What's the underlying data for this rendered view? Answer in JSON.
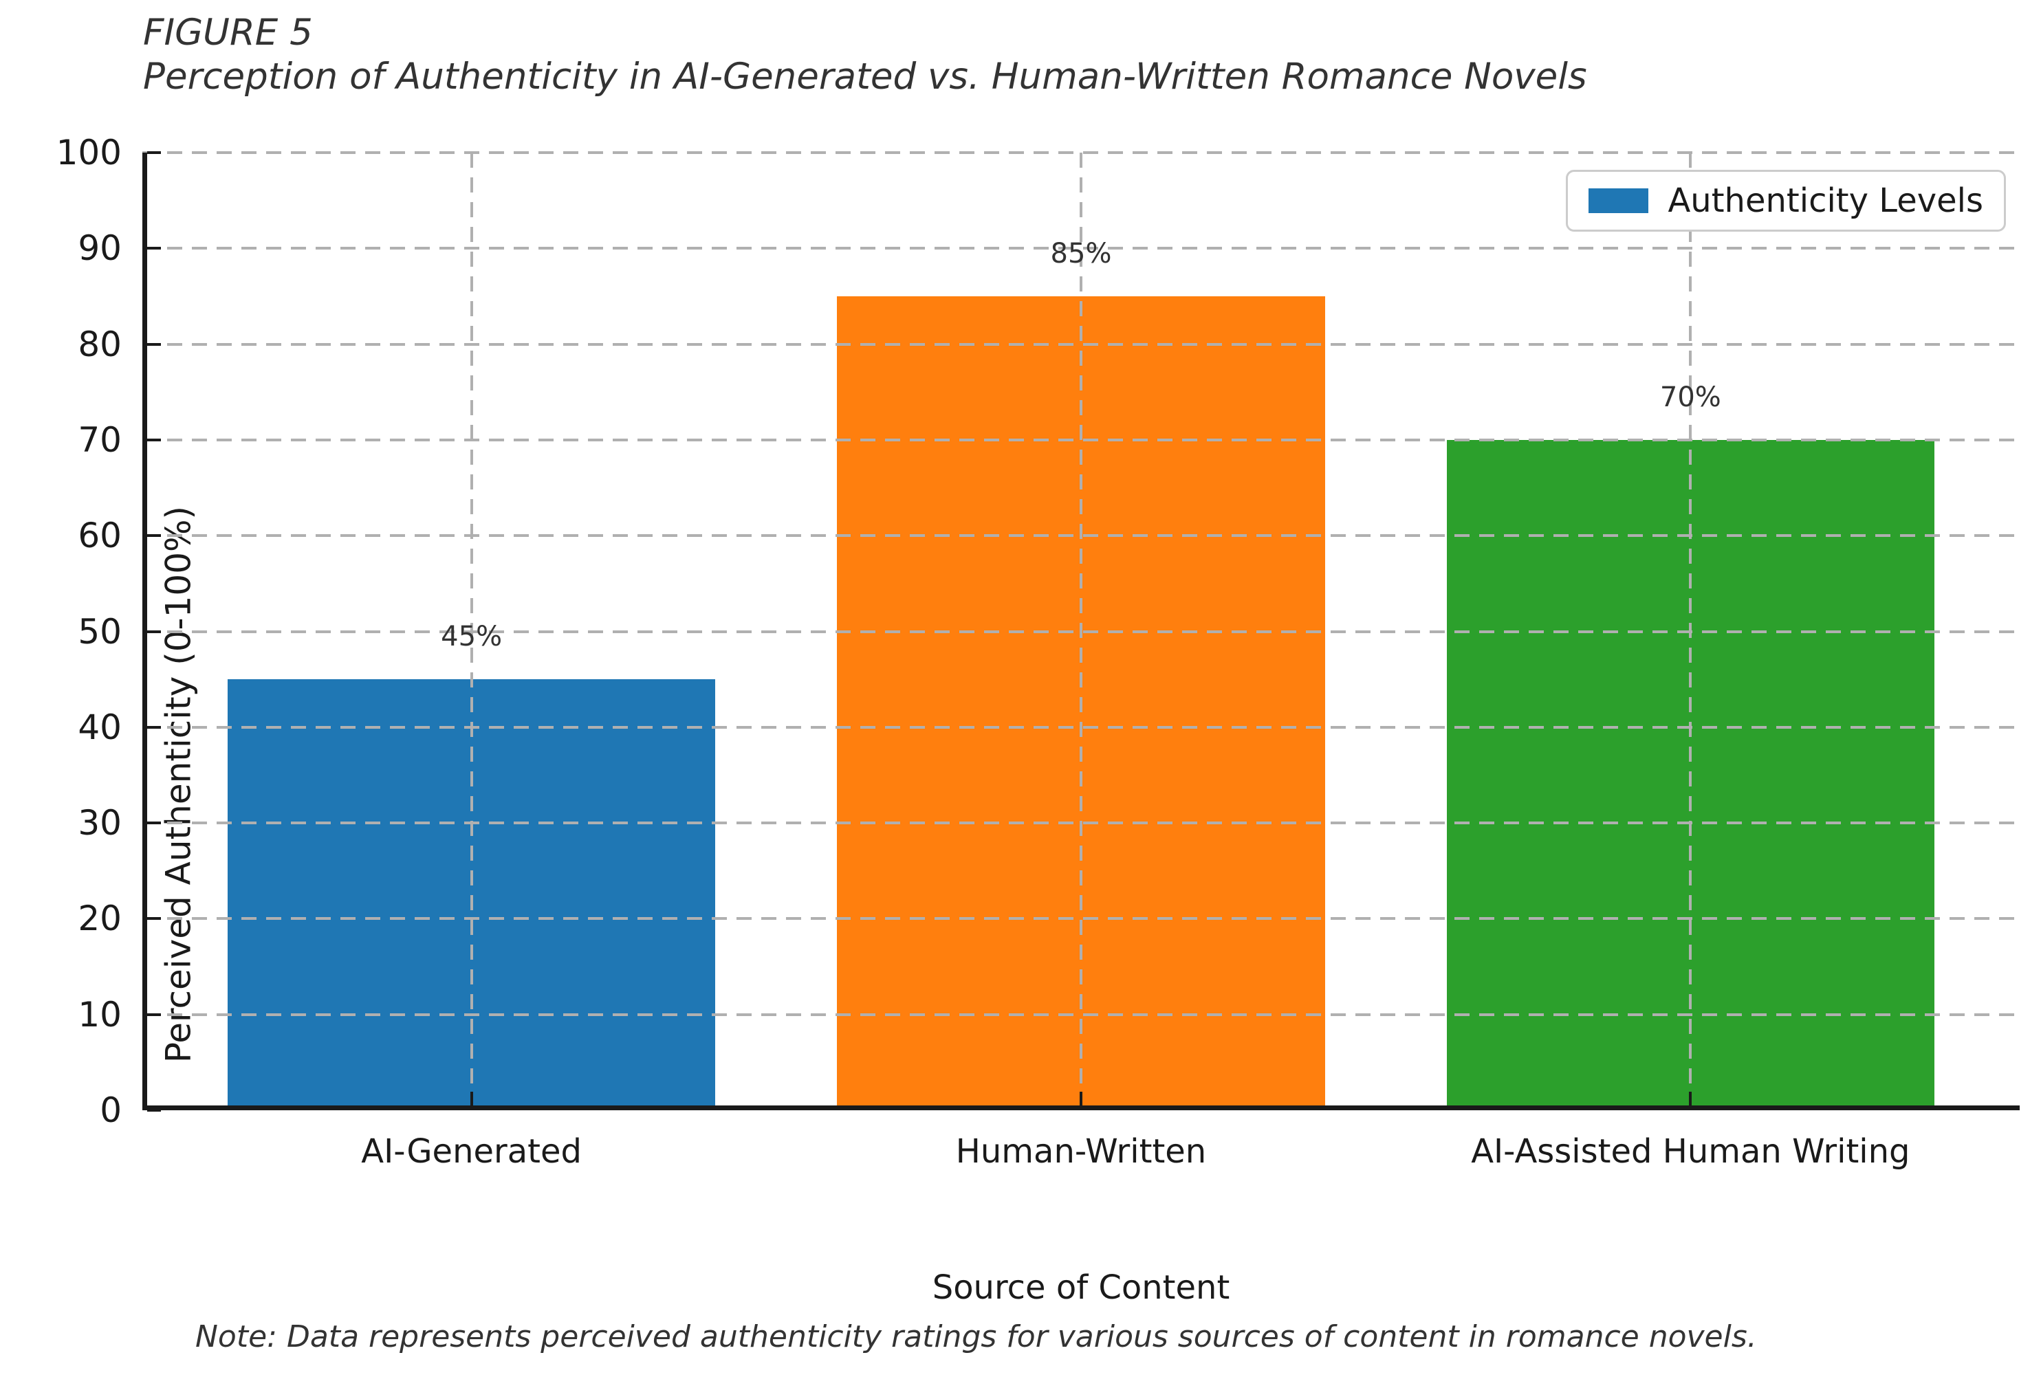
{
  "header": {
    "figure_label": "FIGURE 5",
    "title": "Perception of Authenticity in AI-Generated vs. Human-Written Romance Novels"
  },
  "chart_data": {
    "type": "bar",
    "title": "Perception of Authenticity in AI-Generated vs. Human-Written Romance Novels",
    "categories": [
      "AI-Generated",
      "Human-Written",
      "AI-Assisted Human Writing"
    ],
    "values": [
      45,
      85,
      70
    ],
    "value_labels": [
      "45%",
      "85%",
      "70%"
    ],
    "bar_colors": [
      "#1f77b4",
      "#ff7f0e",
      "#2ca02c"
    ],
    "xlabel": "Source of Content",
    "ylabel": "Perceived Authenticity (0-100%)",
    "ylim": [
      0,
      100
    ],
    "yticks": [
      0,
      10,
      20,
      30,
      40,
      50,
      60,
      70,
      80,
      90,
      100
    ],
    "grid": {
      "visible": true,
      "style": "dashed",
      "axes": "both",
      "above_bars": true
    },
    "legend": {
      "label": "Authenticity Levels",
      "swatch_color": "#1f77b4",
      "position": "upper-right"
    }
  },
  "footer": {
    "note": "Note: Data represents perceived authenticity ratings for various sources of content in romance novels."
  },
  "colors": {
    "background": "#ffffff",
    "title_text": "#333333",
    "tick_text": "#1a1a1a",
    "spine": "#1a1a1a",
    "grid": "#b0b0b0",
    "legend_border": "#cccccc",
    "bar_blue": "#1f77b4",
    "bar_orange": "#ff7f0e",
    "bar_green": "#2ca02c"
  }
}
